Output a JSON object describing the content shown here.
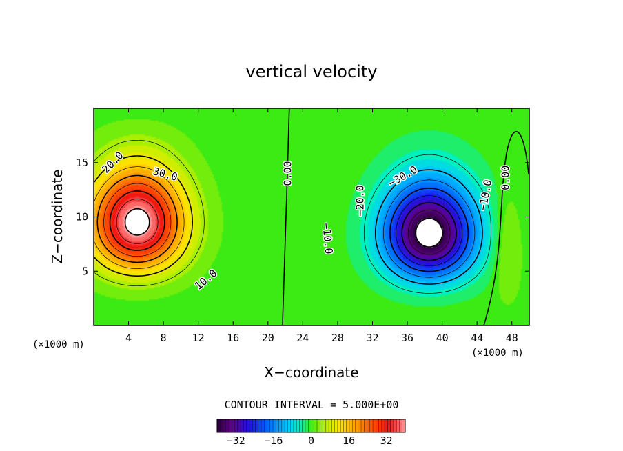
{
  "chart_data": {
    "type": "heatmap",
    "title": "vertical velocity",
    "xlabel": "X−coordinate",
    "ylabel": "Z−coordinate",
    "x_unit": "(×1000 m)",
    "z_unit": "(×1000 m)",
    "xlim": [
      0,
      50
    ],
    "ylim": [
      0,
      20
    ],
    "x_ticks": [
      4,
      8,
      12,
      16,
      20,
      24,
      28,
      32,
      36,
      40,
      44,
      48
    ],
    "y_ticks": [
      5,
      10,
      15
    ],
    "contour_interval_text": "CONTOUR INTERVAL = 5.000E+00",
    "contour_interval": 5.0,
    "colorbar": {
      "min": -40,
      "max": 40,
      "ticks": [
        -32,
        -16,
        0,
        16,
        32
      ]
    },
    "updraft": {
      "center_x": 5,
      "center_z": 9.5,
      "peak": 43
    },
    "downdraft": {
      "center_x": 38.5,
      "center_z": 8.5,
      "peak": -44
    },
    "contour_labels": [
      {
        "text": "20.0",
        "x": 2.2,
        "z": 15.0,
        "angle": -45
      },
      {
        "text": "30.0",
        "x": 8.2,
        "z": 13.9,
        "angle": 15
      },
      {
        "text": "10.0",
        "x": 12.9,
        "z": 4.2,
        "angle": -40
      },
      {
        "text": "0.00",
        "x": 22.3,
        "z": 14.0,
        "angle": -90
      },
      {
        "text": "−20.0",
        "x": 30.6,
        "z": 11.5,
        "angle": -90
      },
      {
        "text": "−30.0",
        "x": 35.5,
        "z": 13.7,
        "angle": -30
      },
      {
        "text": "−10.0",
        "x": 26.8,
        "z": 8.0,
        "angle": 85
      },
      {
        "text": "−10.0",
        "x": 45.0,
        "z": 12.0,
        "angle": -80
      },
      {
        "text": "0.00",
        "x": 47.3,
        "z": 13.6,
        "angle": -90
      }
    ]
  }
}
